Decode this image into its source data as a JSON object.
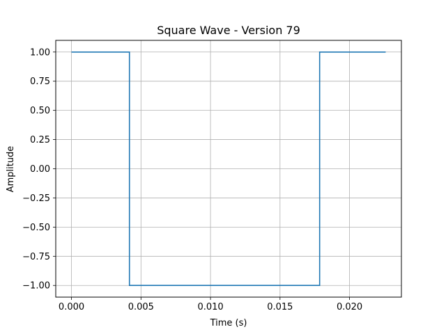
{
  "chart_data": {
    "type": "line",
    "title": "Square Wave - Version 79",
    "xlabel": "Time (s)",
    "ylabel": "Amplitude",
    "xlim": [
      -0.00113,
      0.02373
    ],
    "ylim": [
      -1.1,
      1.1
    ],
    "xticks": [
      0.0,
      0.005,
      0.01,
      0.015,
      0.02
    ],
    "xtick_labels": [
      "0.000",
      "0.005",
      "0.010",
      "0.015",
      "0.020"
    ],
    "yticks": [
      1.0,
      0.75,
      0.5,
      0.25,
      0.0,
      -0.25,
      -0.5,
      -0.75,
      -1.0
    ],
    "ytick_labels": [
      "1.00",
      "0.75",
      "0.50",
      "0.25",
      "0.00",
      "−0.25",
      "−0.50",
      "−0.75",
      "−1.00"
    ],
    "grid": true,
    "series": [
      {
        "color": "#1f77b4",
        "x": [
          0.0,
          0.00417,
          0.00417,
          0.01785,
          0.01785,
          0.0226
        ],
        "y": [
          1.0,
          1.0,
          -1.0,
          -1.0,
          1.0,
          1.0
        ]
      }
    ]
  }
}
